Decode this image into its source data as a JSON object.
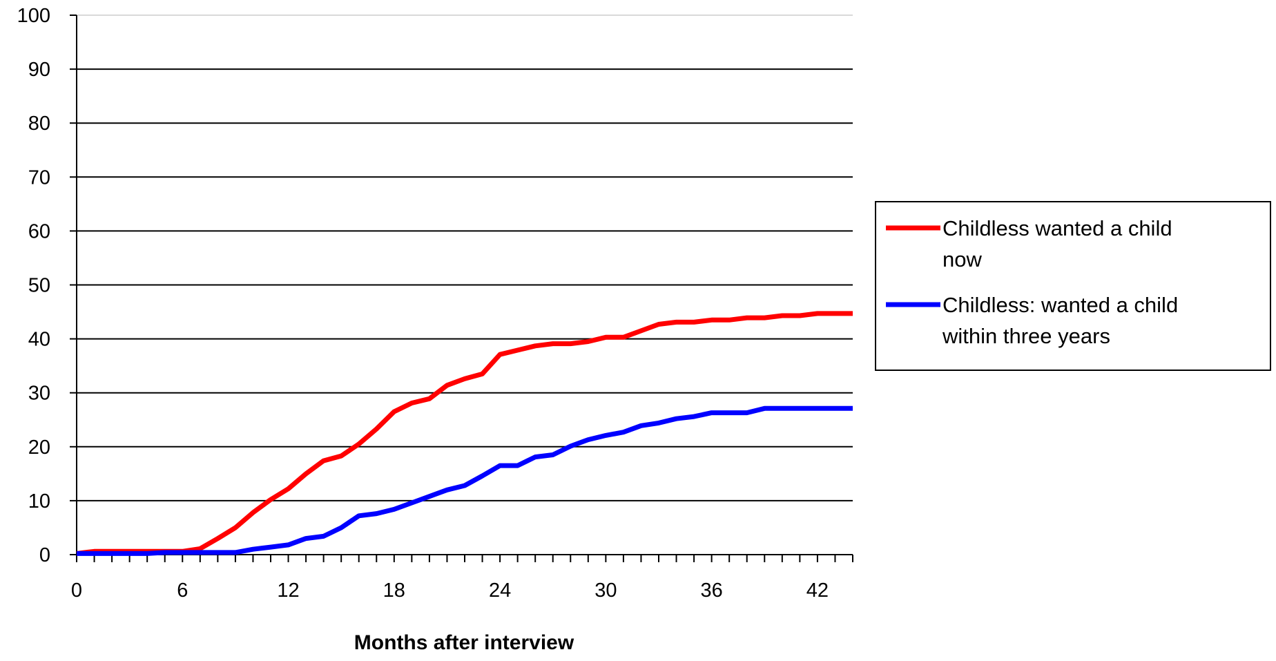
{
  "chart_data": {
    "type": "line",
    "title": "",
    "xlabel": "Months after interview",
    "ylabel": "",
    "xlim": [
      0,
      44
    ],
    "ylim": [
      0,
      100
    ],
    "x_ticks": [
      0,
      6,
      12,
      18,
      24,
      30,
      36,
      42
    ],
    "y_ticks": [
      0,
      10,
      20,
      30,
      40,
      50,
      60,
      70,
      80,
      90,
      100
    ],
    "grid": true,
    "legend_position": "right",
    "x": [
      0,
      1,
      2,
      3,
      4,
      5,
      6,
      7,
      8,
      9,
      10,
      11,
      12,
      13,
      14,
      15,
      16,
      17,
      18,
      19,
      20,
      21,
      22,
      23,
      24,
      25,
      26,
      27,
      28,
      29,
      30,
      31,
      32,
      33,
      34,
      35,
      36,
      37,
      38,
      39,
      40,
      41,
      42,
      43,
      44
    ],
    "series": [
      {
        "name": "Childless wanted a child now",
        "color": "#ff0000",
        "values": [
          0.2,
          0.6,
          0.6,
          0.6,
          0.6,
          0.6,
          0.6,
          1.1,
          3.0,
          5.0,
          7.8,
          10.2,
          12.2,
          15.0,
          17.4,
          18.3,
          20.5,
          23.3,
          26.5,
          28.1,
          28.9,
          31.4,
          32.6,
          33.5,
          37.1,
          37.9,
          38.7,
          39.1,
          39.1,
          39.5,
          40.3,
          40.3,
          41.5,
          42.7,
          43.1,
          43.1,
          43.5,
          43.5,
          43.9,
          43.9,
          44.3,
          44.3,
          44.7,
          44.7,
          44.7
        ]
      },
      {
        "name": "Childless: wanted a child within three years",
        "color": "#0000ff",
        "values": [
          0.2,
          0.2,
          0.2,
          0.2,
          0.2,
          0.4,
          0.4,
          0.4,
          0.4,
          0.4,
          1.0,
          1.4,
          1.8,
          3.0,
          3.4,
          5.0,
          7.2,
          7.6,
          8.4,
          9.6,
          10.8,
          12.0,
          12.8,
          14.6,
          16.5,
          16.5,
          18.1,
          18.5,
          20.1,
          21.3,
          22.1,
          22.7,
          23.9,
          24.4,
          25.2,
          25.6,
          26.3,
          26.3,
          26.3,
          27.1,
          27.1,
          27.1,
          27.1,
          27.1,
          27.1
        ]
      }
    ]
  }
}
